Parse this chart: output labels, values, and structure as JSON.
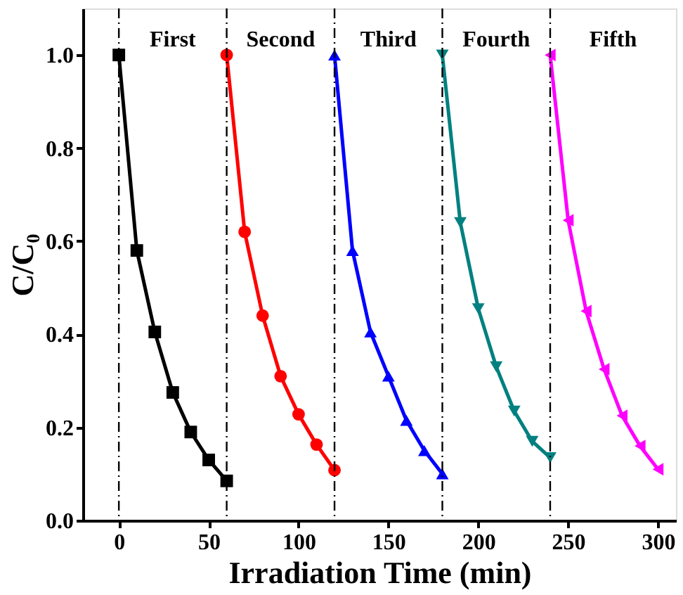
{
  "chart_data": {
    "type": "line",
    "xlabel": "Irradiation Time (min)",
    "ylabel": "C/C₀",
    "xlim": [
      -20,
      310
    ],
    "ylim": [
      0,
      1.1
    ],
    "xticks": [
      0,
      50,
      100,
      150,
      200,
      250,
      300
    ],
    "yticks": [
      {
        "value": 0,
        "label": "0.0"
      },
      0.2,
      0.4,
      0.6,
      0.8,
      {
        "value": 1,
        "label": "1.0"
      }
    ],
    "grid": false,
    "series": [
      {
        "color": "#000000",
        "marker": "square",
        "x": [
          0,
          10,
          20,
          30,
          40,
          50,
          60
        ],
        "values": [
          1.0,
          0.58,
          0.405,
          0.275,
          0.19,
          0.13,
          0.085
        ]
      },
      {
        "color": "#ff0000",
        "marker": "circle",
        "x": [
          60,
          70,
          80,
          90,
          100,
          110,
          120
        ],
        "values": [
          1.0,
          0.62,
          0.44,
          0.31,
          0.228,
          0.163,
          0.108
        ]
      },
      {
        "color": "#0000ff",
        "marker": "triangle-up",
        "x": [
          120,
          130,
          140,
          150,
          160,
          170,
          180
        ],
        "values": [
          1.0,
          0.58,
          0.405,
          0.31,
          0.215,
          0.15,
          0.1
        ]
      },
      {
        "color": "#008080",
        "marker": "triangle-down",
        "x": [
          180,
          190,
          200,
          210,
          220,
          230,
          240
        ],
        "values": [
          1.0,
          0.64,
          0.455,
          0.33,
          0.235,
          0.17,
          0.135
        ]
      },
      {
        "color": "#ff00ff",
        "marker": "triangle-left",
        "x": [
          240,
          250,
          260,
          270,
          280,
          290,
          300
        ],
        "values": [
          1.0,
          0.645,
          0.45,
          0.325,
          0.225,
          0.16,
          0.11
        ]
      }
    ],
    "ref_lines": [
      {
        "axis": "x",
        "value": 0,
        "line_style": "dashdot",
        "color": "#000000"
      },
      {
        "axis": "x",
        "value": 60,
        "line_style": "dashdot",
        "color": "#000000"
      },
      {
        "axis": "x",
        "value": 120,
        "line_style": "dashdot",
        "color": "#000000"
      },
      {
        "axis": "x",
        "value": 180,
        "line_style": "dashdot",
        "color": "#000000"
      },
      {
        "axis": "x",
        "value": 240,
        "line_style": "dashdot",
        "color": "#000000"
      }
    ],
    "annotations": [
      "First",
      "Second",
      "Third",
      "Fourth",
      "Fifth"
    ]
  }
}
